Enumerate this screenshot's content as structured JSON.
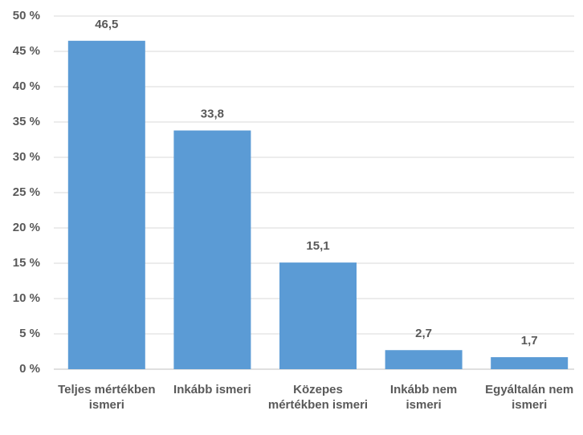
{
  "chart_data": {
    "type": "bar",
    "categories": [
      "Teljes mértékben ismeri",
      "Inkább ismeri",
      "Közepes mértékben ismeri",
      "Inkább nem ismeri",
      "Egyáltalán nem ismeri"
    ],
    "values": [
      46.5,
      33.8,
      15.1,
      2.7,
      1.7
    ],
    "value_labels": [
      "46,5",
      "33,8",
      "15,1",
      "2,7",
      "1,7"
    ],
    "color": "#5b9bd5",
    "ylim": [
      0,
      50
    ],
    "yticks": [
      {
        "value": 0,
        "label": "0 %"
      },
      {
        "value": 5,
        "label": "5 %"
      },
      {
        "value": 10,
        "label": "10 %"
      },
      {
        "value": 15,
        "label": "15 %"
      },
      {
        "value": 20,
        "label": "20 %"
      },
      {
        "value": 25,
        "label": "25 %"
      },
      {
        "value": 30,
        "label": "30 %"
      },
      {
        "value": 35,
        "label": "35 %"
      },
      {
        "value": 40,
        "label": "40 %"
      },
      {
        "value": 45,
        "label": "45 %"
      },
      {
        "value": 50,
        "label": "50 %"
      }
    ],
    "grid": true
  }
}
